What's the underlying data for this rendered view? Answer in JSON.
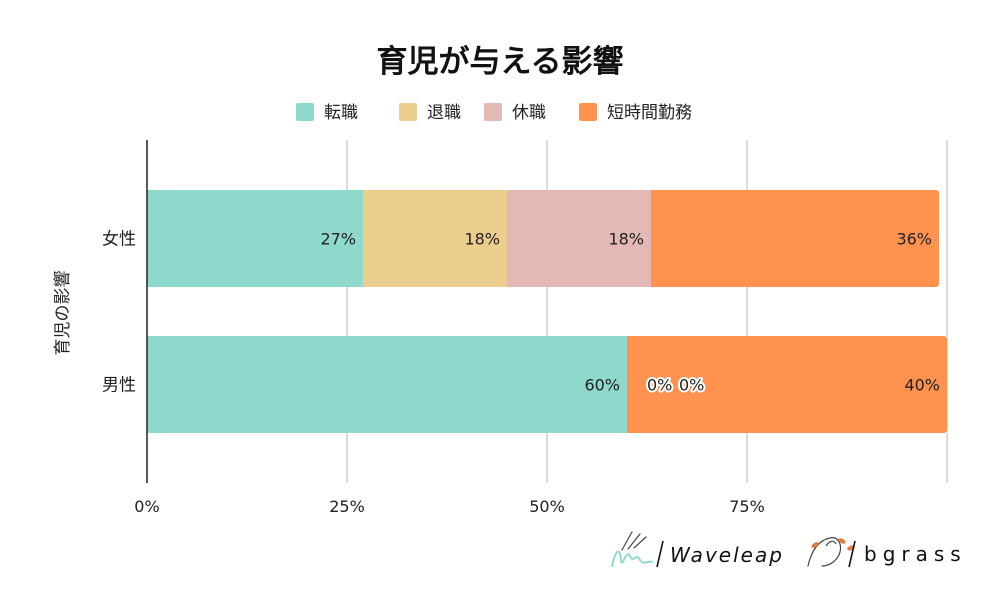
{
  "chart_data": {
    "type": "bar",
    "orientation": "horizontal",
    "stacked": true,
    "title": "育児が与える影響",
    "ylabel": "育児の影響",
    "xlabel": "",
    "categories": [
      "女性",
      "男性"
    ],
    "series": [
      {
        "name": "転職",
        "color": "#8ed9cb",
        "values": [
          27,
          60
        ],
        "labels": [
          "27%",
          "60%"
        ]
      },
      {
        "name": "退職",
        "color": "#ebcd8e",
        "values": [
          18,
          0
        ],
        "labels": [
          "18%",
          "0%"
        ]
      },
      {
        "name": "休職",
        "color": "#e4b8b5",
        "values": [
          18,
          0
        ],
        "labels": [
          "18%",
          "0%"
        ]
      },
      {
        "name": "短時間勤務",
        "color": "#ff924e",
        "values": [
          36,
          40
        ],
        "labels": [
          "36%",
          "40%"
        ]
      }
    ],
    "xlim": [
      0,
      100
    ],
    "xticks": [
      0,
      25,
      50,
      75
    ],
    "xtick_labels": [
      "0%",
      "25%",
      "50%",
      "75%"
    ],
    "grid": true,
    "legend": "top-center"
  },
  "branding": {
    "logo1_text": "Waveleap",
    "logo2_text": "bgrass"
  }
}
